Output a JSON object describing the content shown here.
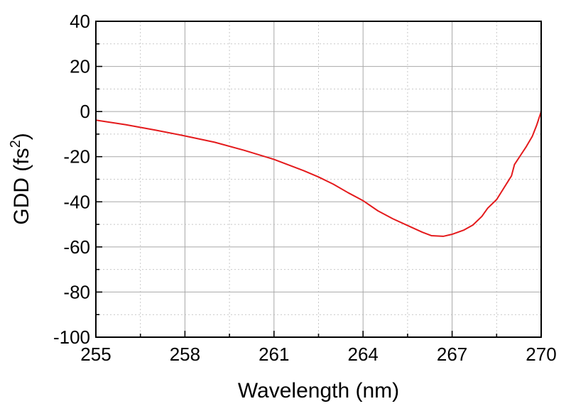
{
  "chart_data": {
    "type": "line",
    "xlabel": "Wavelength (nm)",
    "ylabel_main": "GDD (fs",
    "ylabel_sup": "2",
    "ylabel_close": ")",
    "xlim": [
      255,
      270
    ],
    "ylim": [
      -100,
      40
    ],
    "xticks": [
      255,
      258,
      261,
      264,
      267,
      270
    ],
    "yticks": [
      -100,
      -80,
      -60,
      -40,
      -20,
      0,
      20,
      40
    ],
    "x_minor_step": 1.5,
    "y_minor_step": 10,
    "grid": true,
    "colors": {
      "line": "#e41a1c",
      "frame": "#000000",
      "grid": "#a8a8a8"
    },
    "series": [
      {
        "x": [
          255,
          256,
          257,
          258,
          259,
          260,
          261,
          262,
          262.5,
          263,
          263.5,
          264,
          264.5,
          265,
          265.5,
          266,
          266.3,
          266.7,
          267,
          267.4,
          267.7,
          268,
          268.2,
          268.5,
          268.7,
          269,
          269.1,
          269.3,
          269.5,
          269.7,
          269.85,
          270
        ],
        "y": [
          -3.8,
          -5.8,
          -8.2,
          -10.8,
          -13.6,
          -17.2,
          -21.2,
          -26.2,
          -29,
          -32.2,
          -36,
          -39.5,
          -44,
          -47.5,
          -50.5,
          -53.5,
          -55,
          -55.3,
          -54.4,
          -52.5,
          -50.3,
          -46.5,
          -42.8,
          -39,
          -34.8,
          -28.5,
          -23.5,
          -19.5,
          -15.5,
          -11,
          -6,
          0
        ]
      }
    ]
  }
}
